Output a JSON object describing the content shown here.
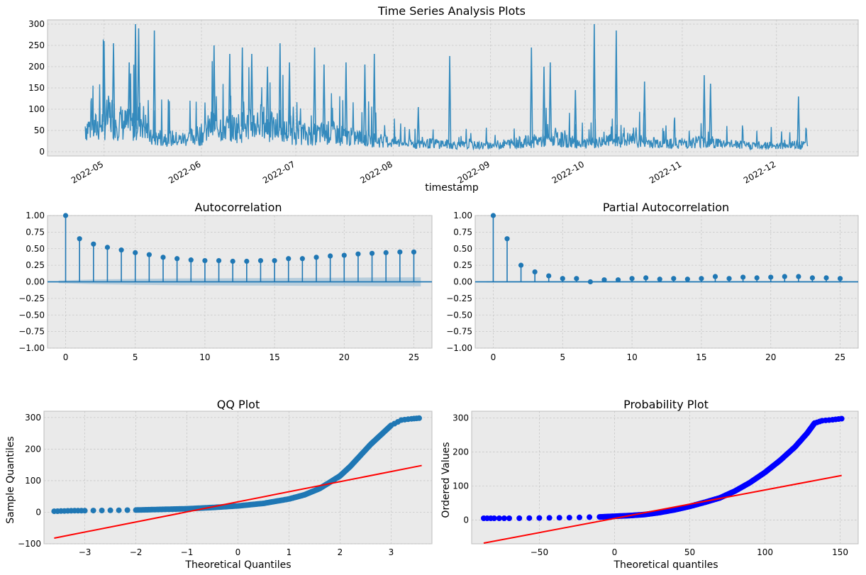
{
  "suptitle": "Time Series Analysis Plots",
  "colors": {
    "axes_bg": "#eaeaea",
    "grid": "#c6c6c6",
    "series": "#348abd",
    "acf": "#1f77b4",
    "confband": "#1f77b4",
    "prob_points": "#0000ff",
    "fit_line": "#ff0000"
  },
  "chart_data": [
    {
      "type": "line",
      "title": "Time Series Analysis Plots",
      "xlabel": "timestamp",
      "ylabel": "",
      "x_type": "date",
      "xlim": [
        "2022-04-13",
        "2022-12-27"
      ],
      "ylim": [
        -10,
        310
      ],
      "yticks": [
        0,
        50,
        100,
        150,
        200,
        250,
        300
      ],
      "xticks": [
        "2022-05-01",
        "2022-06-01",
        "2022-07-01",
        "2022-08-01",
        "2022-09-01",
        "2022-10-01",
        "2022-11-01",
        "2022-12-01"
      ],
      "xticklabels": [
        "2022-05",
        "2022-06",
        "2022-07",
        "2022-08",
        "2022-09",
        "2022-10",
        "2022-11",
        "2022-12"
      ],
      "grid": true,
      "series": [
        {
          "x": [
            "2022-04-25",
            "2022-04-28",
            "2022-05-01",
            "2022-05-03",
            "2022-05-05",
            "2022-05-07",
            "2022-05-10",
            "2022-05-13",
            "2022-05-16",
            "2022-05-20",
            "2022-05-25",
            "2022-06-01",
            "2022-06-05",
            "2022-06-10",
            "2022-06-15",
            "2022-06-20",
            "2022-06-25",
            "2022-07-01",
            "2022-07-06",
            "2022-07-12",
            "2022-07-18",
            "2022-07-24",
            "2022-08-01",
            "2022-08-08",
            "2022-08-15",
            "2022-08-22",
            "2022-09-01",
            "2022-09-08",
            "2022-09-15",
            "2022-09-22",
            "2022-10-01",
            "2022-10-08",
            "2022-10-15",
            "2022-10-22",
            "2022-11-01",
            "2022-11-08",
            "2022-11-15",
            "2022-11-22",
            "2022-12-01",
            "2022-12-08",
            "2022-12-11"
          ],
          "y": [
            60,
            55,
            70,
            85,
            75,
            65,
            60,
            80,
            30,
            35,
            28,
            40,
            65,
            55,
            60,
            70,
            50,
            45,
            40,
            45,
            35,
            30,
            22,
            18,
            20,
            15,
            15,
            20,
            25,
            30,
            18,
            25,
            28,
            22,
            20,
            25,
            18,
            15,
            15,
            16,
            15
          ],
          "peaks": [
            {
              "x": "2022-05-01",
              "y": 260
            },
            {
              "x": "2022-05-04",
              "y": 255
            },
            {
              "x": "2022-05-09",
              "y": 210
            },
            {
              "x": "2022-05-11",
              "y": 300
            },
            {
              "x": "2022-05-12",
              "y": 290
            },
            {
              "x": "2022-05-17",
              "y": 285
            },
            {
              "x": "2022-06-05",
              "y": 250
            },
            {
              "x": "2022-06-10",
              "y": 230
            },
            {
              "x": "2022-06-14",
              "y": 245
            },
            {
              "x": "2022-06-17",
              "y": 230
            },
            {
              "x": "2022-06-22",
              "y": 200
            },
            {
              "x": "2022-06-26",
              "y": 255
            },
            {
              "x": "2022-06-29",
              "y": 210
            },
            {
              "x": "2022-07-07",
              "y": 245
            },
            {
              "x": "2022-07-10",
              "y": 205
            },
            {
              "x": "2022-07-17",
              "y": 210
            },
            {
              "x": "2022-07-23",
              "y": 205
            },
            {
              "x": "2022-07-26",
              "y": 230
            },
            {
              "x": "2022-08-09",
              "y": 105
            },
            {
              "x": "2022-08-19",
              "y": 225
            },
            {
              "x": "2022-09-14",
              "y": 245
            },
            {
              "x": "2022-09-18",
              "y": 200
            },
            {
              "x": "2022-09-20",
              "y": 210
            },
            {
              "x": "2022-09-28",
              "y": 145
            },
            {
              "x": "2022-10-04",
              "y": 300
            },
            {
              "x": "2022-10-11",
              "y": 285
            },
            {
              "x": "2022-10-20",
              "y": 165
            },
            {
              "x": "2022-11-08",
              "y": 180
            },
            {
              "x": "2022-11-10",
              "y": 160
            },
            {
              "x": "2022-12-08",
              "y": 130
            }
          ]
        }
      ]
    },
    {
      "type": "bar",
      "title": "Autocorrelation",
      "xlim": [
        -1.3,
        26.3
      ],
      "ylim": [
        -1.0,
        1.0
      ],
      "xticks": [
        0,
        5,
        10,
        15,
        20,
        25
      ],
      "yticks": [
        "-1.00",
        "-0.75",
        "-0.50",
        "-0.25",
        "0.00",
        "0.25",
        "0.50",
        "0.75",
        "1.00"
      ],
      "lags": [
        0,
        1,
        2,
        3,
        4,
        5,
        6,
        7,
        8,
        9,
        10,
        11,
        12,
        13,
        14,
        15,
        16,
        17,
        18,
        19,
        20,
        21,
        22,
        23,
        24,
        25
      ],
      "values": [
        1.0,
        0.65,
        0.57,
        0.52,
        0.48,
        0.44,
        0.41,
        0.37,
        0.35,
        0.33,
        0.32,
        0.32,
        0.31,
        0.31,
        0.32,
        0.32,
        0.35,
        0.35,
        0.37,
        0.39,
        0.4,
        0.42,
        0.43,
        0.44,
        0.45,
        0.45
      ],
      "conf_upper": [
        0.02,
        0.03,
        0.035,
        0.038,
        0.042,
        0.045,
        0.047,
        0.049,
        0.051,
        0.052,
        0.053,
        0.054,
        0.055,
        0.056,
        0.057,
        0.058,
        0.059,
        0.06,
        0.061,
        0.062,
        0.063,
        0.064,
        0.065,
        0.066,
        0.067,
        0.068
      ],
      "grid": true
    },
    {
      "type": "bar",
      "title": "Partial Autocorrelation",
      "xlim": [
        -1.3,
        26.3
      ],
      "ylim": [
        -1.0,
        1.0
      ],
      "xticks": [
        0,
        5,
        10,
        15,
        20,
        25
      ],
      "yticks": [
        "-1.00",
        "-0.75",
        "-0.50",
        "-0.25",
        "0.00",
        "0.25",
        "0.50",
        "0.75",
        "1.00"
      ],
      "lags": [
        0,
        1,
        2,
        3,
        4,
        5,
        6,
        7,
        8,
        9,
        10,
        11,
        12,
        13,
        14,
        15,
        16,
        17,
        18,
        19,
        20,
        21,
        22,
        23,
        24,
        25
      ],
      "values": [
        1.0,
        0.65,
        0.25,
        0.15,
        0.09,
        0.05,
        0.05,
        0.0,
        0.03,
        0.03,
        0.05,
        0.06,
        0.04,
        0.05,
        0.04,
        0.05,
        0.08,
        0.05,
        0.07,
        0.06,
        0.07,
        0.08,
        0.08,
        0.06,
        0.06,
        0.05
      ],
      "conf_upper": [
        0.01,
        0.01,
        0.01,
        0.01,
        0.01,
        0.01,
        0.01,
        0.01,
        0.01,
        0.01,
        0.01,
        0.01,
        0.01,
        0.01,
        0.01,
        0.01,
        0.01,
        0.01,
        0.01,
        0.01,
        0.01,
        0.01,
        0.01,
        0.01,
        0.01,
        0.01
      ],
      "grid": true
    },
    {
      "type": "scatter",
      "title": "QQ Plot",
      "xlabel": "Theoretical Quantiles",
      "ylabel": "Sample Quantiles",
      "xlim": [
        -3.8,
        3.8
      ],
      "ylim": [
        -100,
        320
      ],
      "xticks": [
        -3,
        -2,
        -1,
        0,
        1,
        2,
        3
      ],
      "xticklabels": [
        "−3",
        "−2",
        "−1",
        "0",
        "1",
        "2",
        "3"
      ],
      "yticks": [
        -100,
        0,
        100,
        200,
        300
      ],
      "yticklabels": [
        "−100",
        "0",
        "100",
        "200",
        "300"
      ],
      "points": [
        [
          -3.6,
          3
        ],
        [
          -3.4,
          4
        ],
        [
          -3.2,
          5
        ],
        [
          -3.0,
          5
        ],
        [
          -2.5,
          6
        ],
        [
          -2.0,
          7
        ],
        [
          -1.5,
          9
        ],
        [
          -1.0,
          11
        ],
        [
          -0.5,
          15
        ],
        [
          0.0,
          20
        ],
        [
          0.5,
          28
        ],
        [
          1.0,
          42
        ],
        [
          1.3,
          55
        ],
        [
          1.6,
          75
        ],
        [
          1.8,
          95
        ],
        [
          2.0,
          115
        ],
        [
          2.2,
          145
        ],
        [
          2.4,
          180
        ],
        [
          2.6,
          215
        ],
        [
          2.8,
          245
        ],
        [
          3.0,
          275
        ],
        [
          3.2,
          292
        ],
        [
          3.4,
          296
        ],
        [
          3.55,
          298
        ]
      ],
      "fit_line": [
        [
          -3.6,
          -82
        ],
        [
          3.6,
          148
        ]
      ],
      "grid": true
    },
    {
      "type": "scatter",
      "title": "Probability Plot",
      "xlabel": "Theoretical quantiles",
      "ylabel": "Ordered Values",
      "xlim": [
        -95,
        162
      ],
      "ylim": [
        -70,
        320
      ],
      "xticks": [
        -50,
        0,
        50,
        100,
        150
      ],
      "xticklabels": [
        "−50",
        "0",
        "50",
        "100",
        "150"
      ],
      "yticks": [
        0,
        100,
        200,
        300
      ],
      "points": [
        [
          -87,
          5
        ],
        [
          -80,
          5
        ],
        [
          -70,
          5
        ],
        [
          -50,
          6
        ],
        [
          -30,
          7
        ],
        [
          -10,
          9
        ],
        [
          0,
          11
        ],
        [
          10,
          13
        ],
        [
          20,
          16
        ],
        [
          30,
          22
        ],
        [
          40,
          30
        ],
        [
          50,
          40
        ],
        [
          60,
          52
        ],
        [
          70,
          65
        ],
        [
          80,
          85
        ],
        [
          90,
          110
        ],
        [
          100,
          140
        ],
        [
          110,
          175
        ],
        [
          120,
          215
        ],
        [
          128,
          255
        ],
        [
          133,
          285
        ],
        [
          138,
          292
        ],
        [
          145,
          295
        ],
        [
          151,
          298
        ]
      ],
      "fit_line": [
        [
          -87,
          -68
        ],
        [
          151,
          131
        ]
      ],
      "grid": true
    }
  ]
}
